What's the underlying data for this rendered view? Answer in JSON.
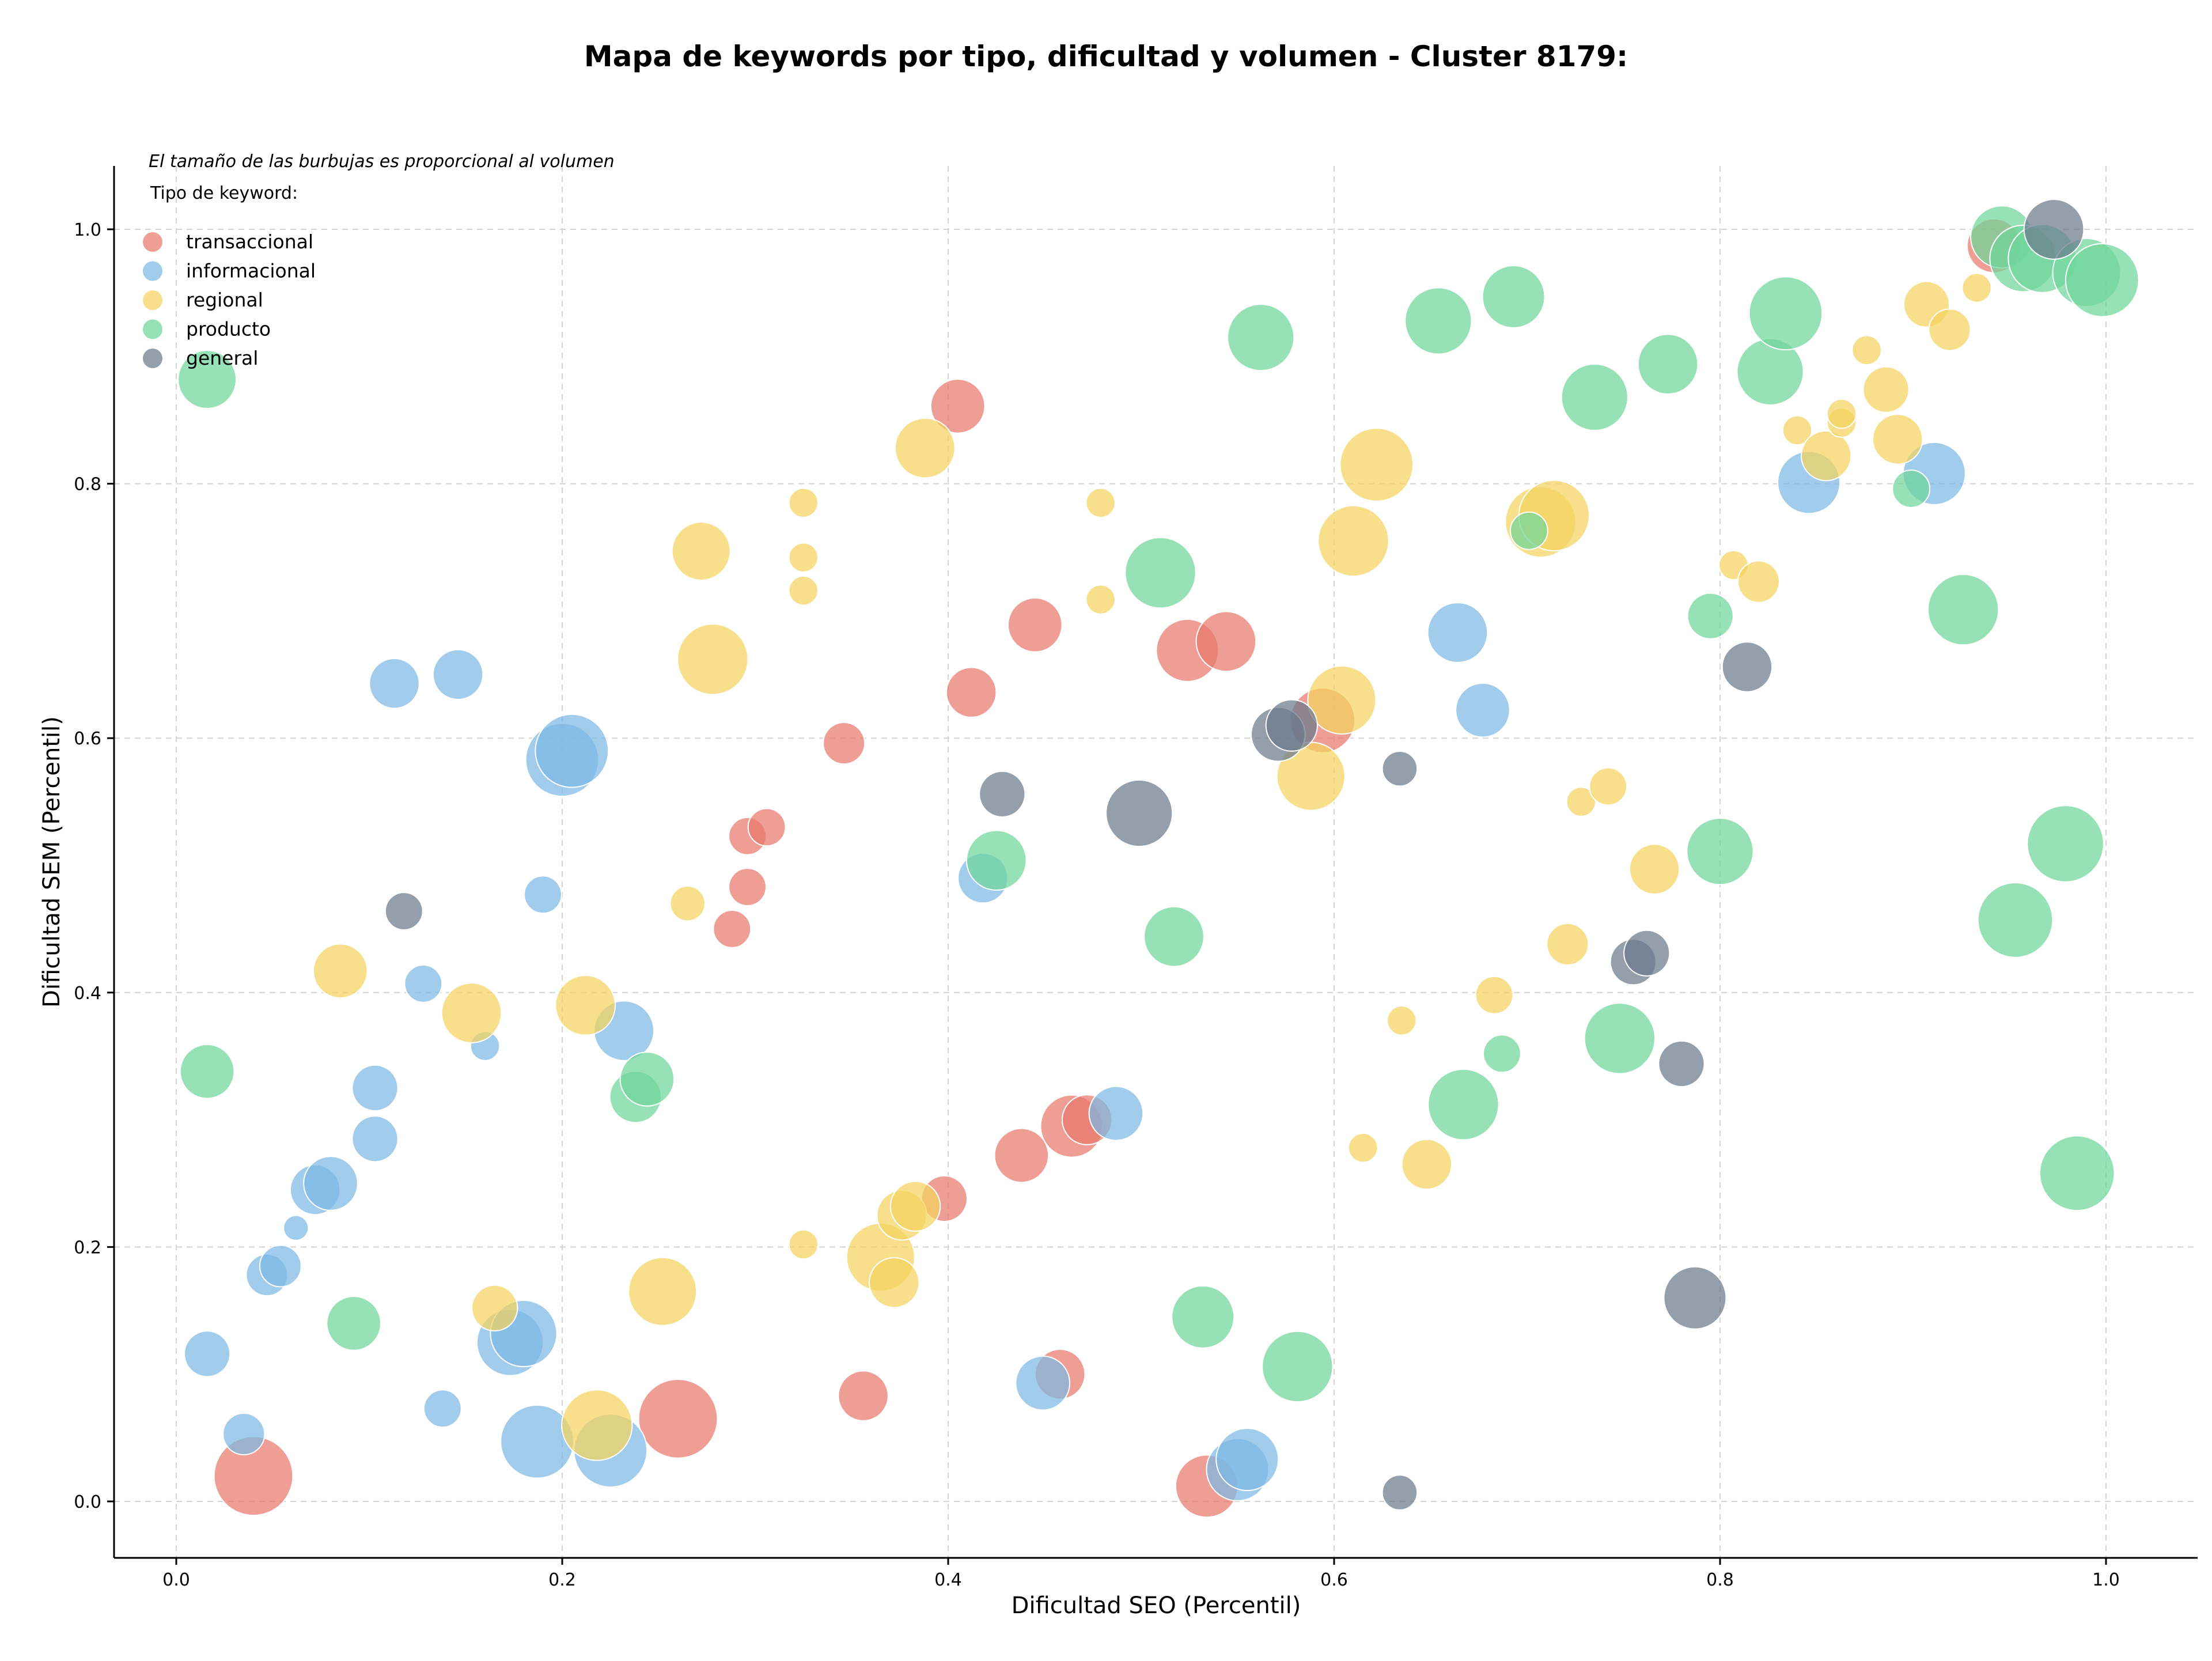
{
  "chart_data": {
    "type": "scatter",
    "title": "Mapa de keywords por tipo, dificultad y volumen - Cluster 8179:",
    "xlabel": "Dificultad SEO (Percentil)",
    "ylabel": "Dificultad SEM (Percentil)",
    "xlim": [
      -0.05,
      1.05
    ],
    "ylim": [
      -0.05,
      1.05
    ],
    "xticks": [
      "0.0",
      "0.2",
      "0.4",
      "0.6",
      "0.8",
      "1.0"
    ],
    "yticks": [
      "0.0",
      "0.2",
      "0.4",
      "0.6",
      "0.8",
      "1.0"
    ],
    "grid": true,
    "note": "El tamaño de las burbujas es proporcional al volumen",
    "legend_title": "Tipo de keyword:",
    "legend_position": "top-left",
    "size_note": "s = relative bubble size (proportional to volume)",
    "series": [
      {
        "name": "transaccional",
        "color": "#e8786c",
        "points": [
          [
            0.04,
            0.02,
            0.95
          ],
          [
            0.26,
            0.065,
            0.95
          ],
          [
            0.356,
            0.083,
            0.6
          ],
          [
            0.458,
            0.1,
            0.6
          ],
          [
            0.464,
            0.295,
            0.75
          ],
          [
            0.472,
            0.3,
            0.6
          ],
          [
            0.438,
            0.272,
            0.65
          ],
          [
            0.398,
            0.238,
            0.55
          ],
          [
            0.534,
            0.012,
            0.75
          ],
          [
            0.288,
            0.45,
            0.45
          ],
          [
            0.296,
            0.523,
            0.45
          ],
          [
            0.306,
            0.53,
            0.45
          ],
          [
            0.296,
            0.483,
            0.45
          ],
          [
            0.346,
            0.596,
            0.5
          ],
          [
            0.405,
            0.861,
            0.65
          ],
          [
            0.412,
            0.636,
            0.6
          ],
          [
            0.445,
            0.689,
            0.65
          ],
          [
            0.524,
            0.669,
            0.75
          ],
          [
            0.544,
            0.676,
            0.72
          ],
          [
            0.594,
            0.614,
            0.78
          ],
          [
            0.942,
            0.987,
            0.65
          ]
        ]
      },
      {
        "name": "informacional",
        "color": "#7db9e5",
        "points": [
          [
            0.016,
            0.116,
            0.55
          ],
          [
            0.035,
            0.053,
            0.5
          ],
          [
            0.047,
            0.178,
            0.5
          ],
          [
            0.054,
            0.185,
            0.5
          ],
          [
            0.062,
            0.215,
            0.3
          ],
          [
            0.072,
            0.245,
            0.6
          ],
          [
            0.08,
            0.25,
            0.65
          ],
          [
            0.103,
            0.285,
            0.55
          ],
          [
            0.103,
            0.325,
            0.55
          ],
          [
            0.113,
            0.643,
            0.6
          ],
          [
            0.128,
            0.407,
            0.45
          ],
          [
            0.138,
            0.073,
            0.45
          ],
          [
            0.146,
            0.65,
            0.6
          ],
          [
            0.16,
            0.358,
            0.35
          ],
          [
            0.173,
            0.125,
            0.8
          ],
          [
            0.18,
            0.132,
            0.8
          ],
          [
            0.187,
            0.047,
            0.88
          ],
          [
            0.19,
            0.477,
            0.45
          ],
          [
            0.2,
            0.583,
            0.88
          ],
          [
            0.205,
            0.59,
            0.88
          ],
          [
            0.225,
            0.04,
            0.88
          ],
          [
            0.232,
            0.37,
            0.72
          ],
          [
            0.418,
            0.49,
            0.6
          ],
          [
            0.449,
            0.093,
            0.65
          ],
          [
            0.487,
            0.305,
            0.65
          ],
          [
            0.55,
            0.025,
            0.75
          ],
          [
            0.555,
            0.033,
            0.75
          ],
          [
            0.664,
            0.683,
            0.72
          ],
          [
            0.677,
            0.622,
            0.65
          ],
          [
            0.846,
            0.801,
            0.75
          ],
          [
            0.911,
            0.808,
            0.75
          ]
        ]
      },
      {
        "name": "regional",
        "color": "#f4d35e",
        "points": [
          [
            0.085,
            0.417,
            0.65
          ],
          [
            0.153,
            0.384,
            0.72
          ],
          [
            0.165,
            0.152,
            0.55
          ],
          [
            0.212,
            0.39,
            0.72
          ],
          [
            0.218,
            0.06,
            0.85
          ],
          [
            0.252,
            0.165,
            0.82
          ],
          [
            0.265,
            0.47,
            0.42
          ],
          [
            0.272,
            0.747,
            0.7
          ],
          [
            0.278,
            0.662,
            0.85
          ],
          [
            0.325,
            0.785,
            0.35
          ],
          [
            0.325,
            0.742,
            0.35
          ],
          [
            0.325,
            0.716,
            0.35
          ],
          [
            0.325,
            0.202,
            0.35
          ],
          [
            0.365,
            0.192,
            0.82
          ],
          [
            0.372,
            0.172,
            0.6
          ],
          [
            0.376,
            0.225,
            0.6
          ],
          [
            0.383,
            0.232,
            0.6
          ],
          [
            0.388,
            0.828,
            0.72
          ],
          [
            0.479,
            0.785,
            0.35
          ],
          [
            0.479,
            0.709,
            0.35
          ],
          [
            0.588,
            0.57,
            0.82
          ],
          [
            0.604,
            0.63,
            0.82
          ],
          [
            0.61,
            0.755,
            0.85
          ],
          [
            0.622,
            0.815,
            0.88
          ],
          [
            0.615,
            0.278,
            0.35
          ],
          [
            0.635,
            0.378,
            0.35
          ],
          [
            0.648,
            0.265,
            0.6
          ],
          [
            0.683,
            0.398,
            0.45
          ],
          [
            0.707,
            0.77,
            0.85
          ],
          [
            0.714,
            0.775,
            0.85
          ],
          [
            0.721,
            0.438,
            0.5
          ],
          [
            0.728,
            0.55,
            0.35
          ],
          [
            0.742,
            0.562,
            0.45
          ],
          [
            0.766,
            0.497,
            0.6
          ],
          [
            0.807,
            0.736,
            0.35
          ],
          [
            0.82,
            0.723,
            0.5
          ],
          [
            0.84,
            0.842,
            0.35
          ],
          [
            0.855,
            0.822,
            0.6
          ],
          [
            0.863,
            0.848,
            0.35
          ],
          [
            0.863,
            0.855,
            0.35
          ],
          [
            0.876,
            0.905,
            0.35
          ],
          [
            0.886,
            0.874,
            0.55
          ],
          [
            0.892,
            0.835,
            0.6
          ],
          [
            0.907,
            0.941,
            0.55
          ],
          [
            0.919,
            0.921,
            0.5
          ],
          [
            0.933,
            0.954,
            0.35
          ]
        ]
      },
      {
        "name": "producto",
        "color": "#6fd69a",
        "points": [
          [
            0.016,
            0.882,
            0.7
          ],
          [
            0.016,
            0.338,
            0.65
          ],
          [
            0.092,
            0.14,
            0.65
          ],
          [
            0.238,
            0.318,
            0.62
          ],
          [
            0.244,
            0.332,
            0.65
          ],
          [
            0.425,
            0.504,
            0.72
          ],
          [
            0.51,
            0.73,
            0.85
          ],
          [
            0.517,
            0.444,
            0.72
          ],
          [
            0.532,
            0.145,
            0.75
          ],
          [
            0.562,
            0.915,
            0.8
          ],
          [
            0.581,
            0.106,
            0.85
          ],
          [
            0.654,
            0.928,
            0.8
          ],
          [
            0.667,
            0.312,
            0.85
          ],
          [
            0.687,
            0.352,
            0.45
          ],
          [
            0.693,
            0.947,
            0.75
          ],
          [
            0.701,
            0.763,
            0.45
          ],
          [
            0.735,
            0.868,
            0.8
          ],
          [
            0.748,
            0.364,
            0.85
          ],
          [
            0.773,
            0.894,
            0.72
          ],
          [
            0.795,
            0.696,
            0.55
          ],
          [
            0.8,
            0.511,
            0.8
          ],
          [
            0.826,
            0.888,
            0.8
          ],
          [
            0.834,
            0.934,
            0.88
          ],
          [
            0.899,
            0.796,
            0.45
          ],
          [
            0.926,
            0.701,
            0.85
          ],
          [
            0.946,
            0.994,
            0.75
          ],
          [
            0.953,
            0.457,
            0.9
          ],
          [
            0.957,
            0.977,
            0.8
          ],
          [
            0.967,
            0.977,
            0.82
          ],
          [
            0.979,
            0.517,
            0.92
          ],
          [
            0.985,
            0.258,
            0.9
          ],
          [
            0.99,
            0.966,
            0.82
          ],
          [
            0.998,
            0.96,
            0.88
          ]
        ]
      },
      {
        "name": "general",
        "color": "#6b7a8c",
        "points": [
          [
            0.118,
            0.464,
            0.45
          ],
          [
            0.428,
            0.556,
            0.55
          ],
          [
            0.499,
            0.541,
            0.8
          ],
          [
            0.571,
            0.603,
            0.65
          ],
          [
            0.578,
            0.61,
            0.62
          ],
          [
            0.634,
            0.576,
            0.42
          ],
          [
            0.634,
            0.007,
            0.42
          ],
          [
            0.755,
            0.424,
            0.55
          ],
          [
            0.762,
            0.431,
            0.55
          ],
          [
            0.78,
            0.344,
            0.55
          ],
          [
            0.787,
            0.16,
            0.75
          ],
          [
            0.814,
            0.656,
            0.6
          ],
          [
            0.973,
            1.0,
            0.72
          ]
        ]
      }
    ]
  }
}
